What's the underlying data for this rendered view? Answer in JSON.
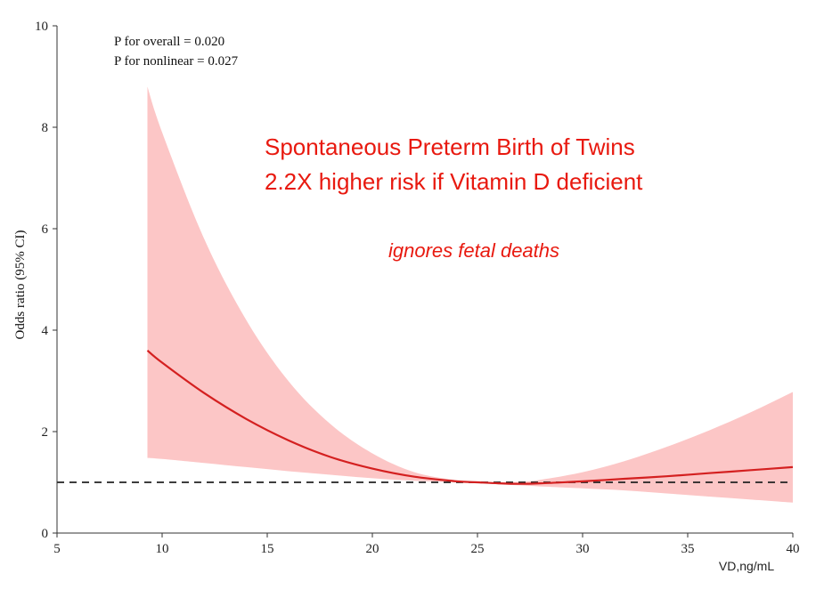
{
  "chart_data": {
    "type": "line",
    "title": "",
    "xlabel": "VD,ng/mL",
    "ylabel": "Odds ratio (95% CI)",
    "xlim": [
      5,
      40
    ],
    "ylim": [
      0,
      10
    ],
    "x_ticks": [
      "5",
      "10",
      "15",
      "20",
      "25",
      "30",
      "35",
      "40"
    ],
    "y_ticks": [
      "0",
      "2",
      "4",
      "6",
      "8",
      "10"
    ],
    "x_tick_values": [
      5,
      10,
      15,
      20,
      25,
      30,
      35,
      40
    ],
    "y_tick_values": [
      0,
      2,
      4,
      6,
      8,
      10
    ],
    "reference_line": {
      "y": 1,
      "style": "dashed"
    },
    "series": [
      {
        "name": "Odds ratio",
        "color": "#d42020",
        "x": [
          9.3,
          10,
          12,
          14,
          16,
          18,
          20,
          22,
          24,
          25,
          26,
          27,
          28,
          30,
          32,
          34,
          36,
          38,
          40
        ],
        "values": [
          3.6,
          3.36,
          2.76,
          2.25,
          1.83,
          1.5,
          1.27,
          1.11,
          1.02,
          1.0,
          0.98,
          0.97,
          0.98,
          1.02,
          1.07,
          1.12,
          1.18,
          1.24,
          1.3
        ]
      }
    ],
    "confidence_band": {
      "name": "95% CI",
      "color": "#fcc6c6",
      "x": [
        9.3,
        10,
        12,
        14,
        16,
        18,
        20,
        22,
        24,
        25,
        26,
        27,
        28,
        30,
        32,
        34,
        36,
        38,
        40
      ],
      "lower": [
        1.48,
        1.46,
        1.38,
        1.3,
        1.22,
        1.15,
        1.08,
        1.03,
        1.0,
        0.99,
        0.96,
        0.94,
        0.92,
        0.88,
        0.84,
        0.78,
        0.72,
        0.66,
        0.6
      ],
      "upper": [
        8.8,
        7.9,
        5.8,
        4.2,
        3.0,
        2.15,
        1.57,
        1.2,
        1.04,
        1.0,
        1.0,
        1.01,
        1.05,
        1.2,
        1.42,
        1.7,
        2.02,
        2.38,
        2.78
      ]
    },
    "annotations": {
      "p_overall": "P for overall = 0.020",
      "p_nonlinear": "P for nonlinear = 0.027",
      "headline_1": "Spontaneous Preterm Birth of Twins",
      "headline_2": "2.2X higher risk if Vitamin D deficient",
      "note": "ignores fetal deaths"
    }
  }
}
